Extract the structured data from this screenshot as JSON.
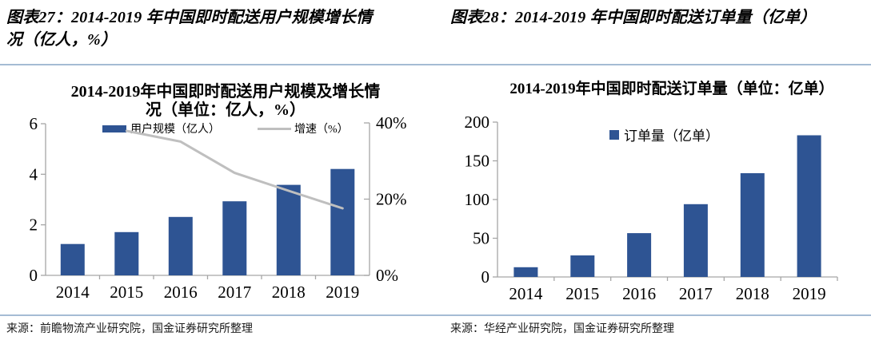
{
  "figures": {
    "fig27": {
      "header": "图表27：2014-2019 年中国即时配送用户规模增长情况（亿人，%）",
      "source": "来源：前瞻物流产业研究院，国金证券研究所整理"
    },
    "fig28": {
      "header": "图表28：2014-2019 年中国即时配送订单量（亿单）",
      "source": "来源：华经产业研究院，国金证券研究所整理"
    }
  },
  "colors": {
    "bar": "#2E5493",
    "line": "#BFBFBF",
    "axis": "#A6A6A6",
    "rule": "#A5BCD4"
  },
  "chart_data": [
    {
      "id": "chart27",
      "type": "bar",
      "title": "2014-2019年中国即时配送用户规模及增长情况（单位：亿人，%）",
      "categories": [
        "2014",
        "2015",
        "2016",
        "2017",
        "2018",
        "2019"
      ],
      "series": [
        {
          "name": "用户规模（亿人）",
          "type": "bar",
          "axis": "left",
          "values": [
            1.24,
            1.71,
            2.31,
            2.93,
            3.58,
            4.21
          ]
        },
        {
          "name": "增速（%）",
          "type": "line",
          "axis": "right",
          "values": [
            null,
            37.9,
            35.1,
            26.9,
            22.2,
            17.6
          ]
        }
      ],
      "left_axis": {
        "range": [
          0,
          6
        ],
        "ticks": [
          "0",
          "2",
          "4",
          "6"
        ]
      },
      "right_axis": {
        "range": [
          0,
          40
        ],
        "ticks": [
          "0%",
          "20%",
          "40%"
        ]
      },
      "legend_position": "top",
      "grid": false
    },
    {
      "id": "chart28",
      "type": "bar",
      "title": "2014-2019年中国即时配送订单量（单位：亿单）",
      "categories": [
        "2014",
        "2015",
        "2016",
        "2017",
        "2018",
        "2019"
      ],
      "series": [
        {
          "name": "订单量（亿单）",
          "type": "bar",
          "axis": "left",
          "values": [
            12.6,
            27.8,
            56.6,
            94,
            134,
            183
          ]
        }
      ],
      "left_axis": {
        "range": [
          0,
          200
        ],
        "ticks": [
          "0",
          "50",
          "100",
          "150",
          "200"
        ]
      },
      "legend_position": "top",
      "grid": false
    }
  ]
}
